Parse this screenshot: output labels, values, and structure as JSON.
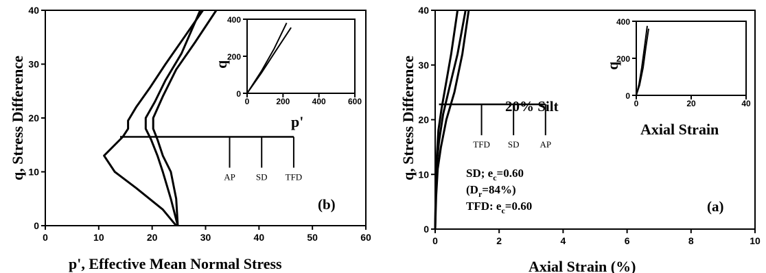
{
  "chart_data": [
    {
      "type": "line",
      "panel_label": "(b)",
      "xlabel": "p', Effective Mean Normal Stress",
      "ylabel": "q, Stress Difference",
      "xlim": [
        0,
        60
      ],
      "ylim": [
        0,
        40
      ],
      "xticks": [
        "0",
        "10",
        "20",
        "30",
        "40",
        "50",
        "60"
      ],
      "yticks": [
        "0",
        "10",
        "20",
        "30",
        "40"
      ],
      "series": [
        {
          "x": [
            24.5,
            22,
            17,
            13,
            11,
            14.5,
            15.5,
            15.5,
            17,
            19.5,
            22.5,
            26,
            29.5
          ],
          "y": [
            0,
            3,
            7,
            10,
            13,
            16.5,
            18,
            19.5,
            22,
            25.5,
            30,
            35,
            40
          ]
        },
        {
          "x": [
            24.8,
            23.5,
            22,
            21,
            19.8,
            18.8,
            18.8,
            20.5,
            22.5,
            25.5,
            29
          ],
          "y": [
            0,
            5,
            10,
            13,
            16,
            18,
            20,
            23,
            27,
            32,
            40
          ]
        },
        {
          "x": [
            24.8,
            24.5,
            23.5,
            22,
            21,
            20.2,
            20.2,
            22,
            24.5,
            28,
            32
          ],
          "y": [
            0,
            5,
            10,
            13,
            16,
            18,
            20,
            24,
            29,
            34,
            40
          ]
        }
      ],
      "legend": {
        "line_y": 16.5,
        "line_x": [
          14,
          46.5
        ],
        "items": [
          {
            "x": 34.5,
            "label": "AP"
          },
          {
            "x": 40.5,
            "label": "SD"
          },
          {
            "x": 46.5,
            "label": "TFD"
          }
        ]
      },
      "inset": {
        "xlabel": "p'",
        "ylabel": "q",
        "xlim": [
          0,
          600
        ],
        "ylim": [
          0,
          400
        ],
        "xticks": [
          "0",
          "200",
          "400",
          "600"
        ],
        "yticks": [
          "0",
          "200",
          "400"
        ],
        "series": [
          {
            "x": [
              0,
              80,
              150,
              220
            ],
            "y": [
              0,
              120,
              240,
              380
            ]
          },
          {
            "x": [
              0,
              80,
              160,
              245
            ],
            "y": [
              0,
              110,
              230,
              355
            ]
          }
        ]
      }
    },
    {
      "type": "line",
      "panel_label": "(a)",
      "title": "20% Silt",
      "xlabel": "Axial Strain (%)",
      "ylabel": "q, Stress Difference",
      "xlim": [
        0,
        10
      ],
      "ylim": [
        0,
        40
      ],
      "xticks": [
        "0",
        "2",
        "4",
        "6",
        "8",
        "10"
      ],
      "yticks": [
        "0",
        "10",
        "20",
        "30",
        "40"
      ],
      "series": [
        {
          "x": [
            0,
            0.02,
            0.05,
            0.1,
            0.2,
            0.35,
            0.5,
            0.7
          ],
          "y": [
            0,
            8,
            13,
            18,
            22,
            27,
            32,
            40
          ]
        },
        {
          "x": [
            0,
            0.02,
            0.05,
            0.12,
            0.25,
            0.45,
            0.7,
            0.95
          ],
          "y": [
            0,
            7,
            12,
            16,
            21,
            26,
            32,
            40
          ]
        },
        {
          "x": [
            0,
            0.03,
            0.08,
            0.18,
            0.35,
            0.6,
            0.85,
            1.05
          ],
          "y": [
            0,
            6,
            11,
            15,
            20,
            25,
            32,
            40
          ]
        }
      ],
      "legend": {
        "line_y": 22.8,
        "line_x": [
          0.12,
          3.45
        ],
        "items": [
          {
            "x": 1.45,
            "label": "TFD"
          },
          {
            "x": 2.45,
            "label": "SD"
          },
          {
            "x": 3.45,
            "label": "AP"
          }
        ]
      },
      "annotations": {
        "line1": "SD; e",
        "line1_sub": "c",
        "line1_tail": "=0.60",
        "line2": "(D",
        "line2_sub": "r",
        "line2_tail": "=84%)",
        "line3": "TFD: e",
        "line3_sub": "c",
        "line3_tail": "=0.60"
      },
      "inset": {
        "xlabel": "Axial Strain",
        "ylabel": "q",
        "xlim": [
          0,
          40
        ],
        "ylim": [
          0,
          400
        ],
        "xticks": [
          "0",
          "20",
          "40"
        ],
        "yticks": [
          "0",
          "200",
          "400"
        ],
        "series": [
          {
            "x": [
              0,
              1,
              2,
              3,
              4
            ],
            "y": [
              0,
              60,
              150,
              260,
              375
            ]
          },
          {
            "x": [
              0,
              1.2,
              2.5,
              3.5,
              4.5
            ],
            "y": [
              0,
              55,
              150,
              260,
              360
            ]
          }
        ]
      }
    }
  ]
}
